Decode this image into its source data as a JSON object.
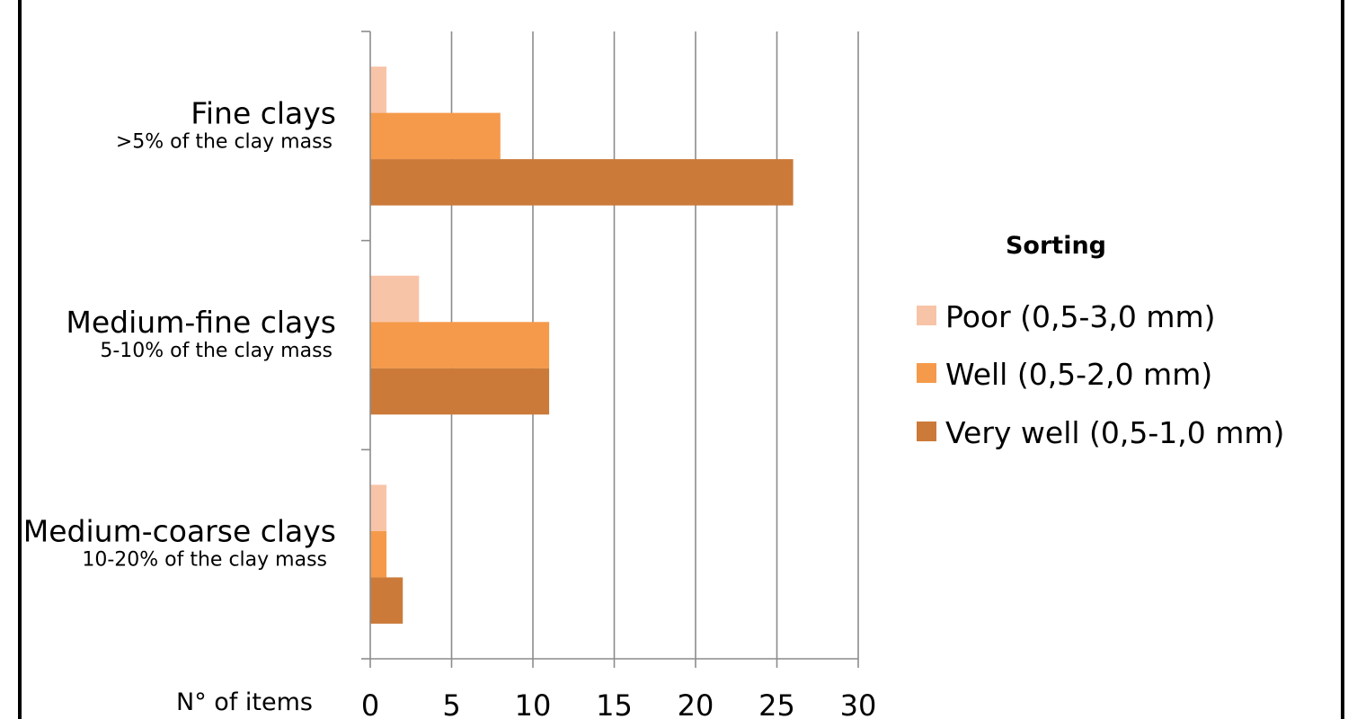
{
  "chart_data": {
    "type": "bar",
    "orientation": "horizontal",
    "categories": [
      "Fine clays",
      "Medium-fine clays",
      "Medium-coarse clays"
    ],
    "category_sublabels": [
      ">5% of the clay mass",
      "5-10% of the clay mass",
      "10-20% of the clay mass"
    ],
    "series": [
      {
        "name": "Poor (0,5-3,0 mm)",
        "values": [
          1,
          3,
          1
        ],
        "color": "#f8c4a8"
      },
      {
        "name": "Well (0,5-2,0 mm)",
        "values": [
          8,
          11,
          1
        ],
        "color": "#f59a4b"
      },
      {
        "name": "Very well (0,5-1,0 mm)",
        "values": [
          26,
          11,
          2
        ],
        "color": "#cb7a3a"
      }
    ],
    "xlabel": "N° of items",
    "xlim": [
      0,
      30
    ],
    "xticks": [
      "0",
      "5",
      "10",
      "15",
      "20",
      "25",
      "30"
    ],
    "grid": true,
    "legend": {
      "title": "Sorting",
      "position": "right"
    }
  }
}
